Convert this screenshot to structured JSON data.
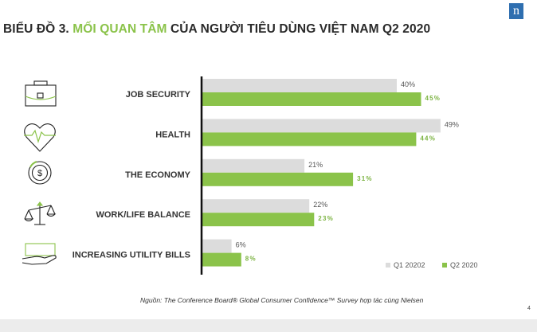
{
  "header": {
    "title_prefix": "BIỂU ĐỒ 3. ",
    "title_highlight": "MỐI QUAN TÂM",
    "title_suffix": " CỦA NGƯỜI TIÊU DÙNG VIỆT NAM Q2 2020",
    "logo_letter": "n"
  },
  "footnote": "Nguồn: The Conference Board® Global Consumer Confidence™ Survey hợp tác cùng Nielsen",
  "page_number": "4",
  "colors": {
    "q1": "#dcdcdc",
    "q2": "#8bc34a",
    "q2_label": "#7cb342",
    "axis": "#111111",
    "highlight": "#8bc34a"
  },
  "icons": [
    "briefcase-icon",
    "heart-pulse-icon",
    "dollar-coin-icon",
    "balance-scale-icon",
    "hand-bill-icon"
  ],
  "chart_data": {
    "type": "bar",
    "orientation": "horizontal",
    "categories": [
      "JOB SECURITY",
      "HEALTH",
      "THE ECONOMY",
      "WORK/LIFE BALANCE",
      "INCREASING UTILITY BILLS"
    ],
    "series": [
      {
        "name": "Q1 20202",
        "values": [
          40,
          49,
          21,
          22,
          6
        ],
        "labels": [
          "40%",
          "49%",
          "21%",
          "22%",
          "6%"
        ]
      },
      {
        "name": "Q2 2020",
        "values": [
          45,
          44,
          31,
          23,
          8
        ],
        "labels": [
          "45%",
          "44%",
          "31%",
          "23%",
          "8%"
        ]
      }
    ],
    "xlim": [
      0,
      50
    ],
    "grid": false,
    "legend": "bottom-right"
  }
}
